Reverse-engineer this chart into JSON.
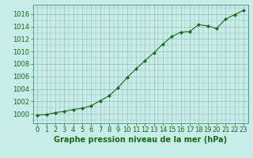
{
  "x": [
    0,
    1,
    2,
    3,
    4,
    5,
    6,
    7,
    8,
    9,
    10,
    11,
    12,
    13,
    14,
    15,
    16,
    17,
    18,
    19,
    20,
    21,
    22,
    23
  ],
  "y": [
    999.8,
    999.9,
    1000.2,
    1000.4,
    1000.7,
    1000.9,
    1001.3,
    1002.1,
    1002.9,
    1004.2,
    1005.8,
    1007.2,
    1008.5,
    1009.8,
    1011.2,
    1012.4,
    1013.1,
    1013.2,
    1014.3,
    1014.1,
    1013.7,
    1015.2,
    1015.9,
    1016.6
  ],
  "line_color": "#1a6b1a",
  "marker_color": "#1a6b1a",
  "bg_color": "#c8ede8",
  "grid_color": "#90c0b8",
  "border_color": "#5a9a8a",
  "xlabel": "Graphe pression niveau de la mer (hPa)",
  "ylim": [
    998.5,
    1017.5
  ],
  "xlim": [
    -0.5,
    23.5
  ],
  "yticks": [
    1000,
    1002,
    1004,
    1006,
    1008,
    1010,
    1012,
    1014,
    1016
  ],
  "xticks": [
    0,
    1,
    2,
    3,
    4,
    5,
    6,
    7,
    8,
    9,
    10,
    11,
    12,
    13,
    14,
    15,
    16,
    17,
    18,
    19,
    20,
    21,
    22,
    23
  ],
  "xlabel_fontsize": 7,
  "tick_fontsize": 6,
  "linewidth": 0.8,
  "markersize": 2.2
}
